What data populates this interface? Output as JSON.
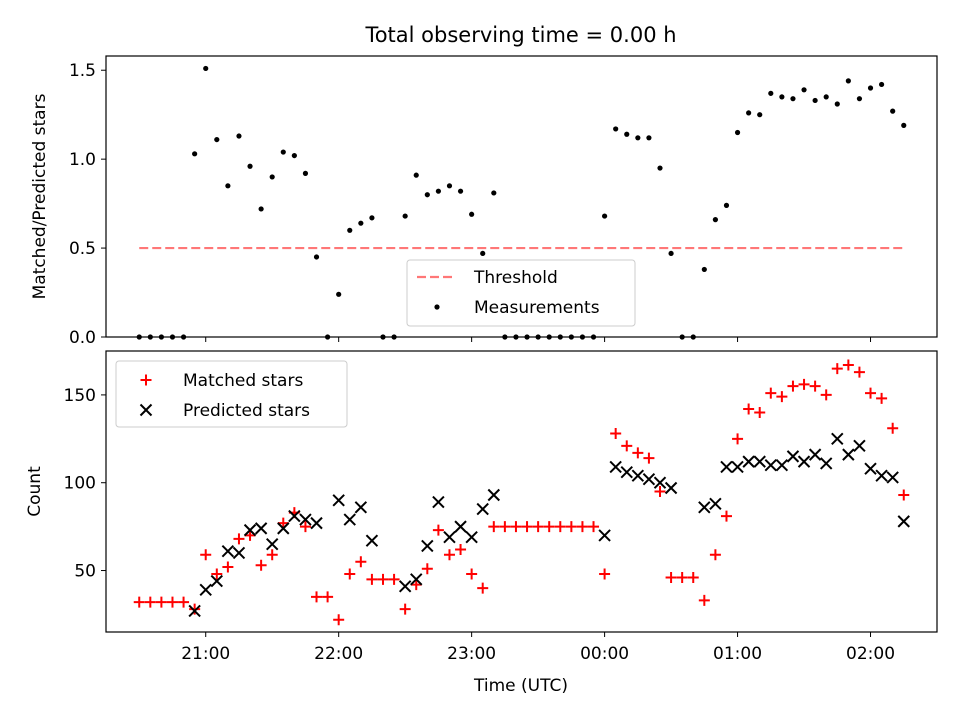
{
  "title": "Total observing time = 0.00 h",
  "xlabel": "Time (UTC)",
  "x_tick_labels": [
    "21:00",
    "22:00",
    "23:00",
    "00:00",
    "01:00",
    "02:00"
  ],
  "colors": {
    "threshold": "#ff7777",
    "measurements": "#000000",
    "matched": "#ff0000",
    "predicted": "#000000"
  },
  "chart_data": [
    {
      "type": "scatter",
      "ylabel": "Matched/Predicted stars",
      "ylim": [
        0,
        1.58
      ],
      "y_ticks": [
        "0.0",
        "0.5",
        "1.0",
        "1.5"
      ],
      "y_tick_values": [
        0,
        0.5,
        1.0,
        1.5
      ],
      "legend_location": "bottom-center",
      "series": [
        {
          "name": "Threshold",
          "kind": "dashed-line",
          "x": [
            "20:30",
            "02:15"
          ],
          "y": [
            0.5,
            0.5
          ]
        },
        {
          "name": "Measurements",
          "kind": "dot",
          "x": [
            "20:30",
            "20:35",
            "20:40",
            "20:45",
            "20:50",
            "20:55",
            "21:00",
            "21:05",
            "21:10",
            "21:15",
            "21:20",
            "21:25",
            "21:30",
            "21:35",
            "21:40",
            "21:45",
            "21:50",
            "21:55",
            "22:00",
            "22:05",
            "22:10",
            "22:15",
            "22:20",
            "22:25",
            "22:30",
            "22:35",
            "22:40",
            "22:45",
            "22:50",
            "22:55",
            "23:00",
            "23:05",
            "23:10",
            "23:15",
            "23:20",
            "23:25",
            "23:30",
            "23:35",
            "23:40",
            "23:45",
            "23:50",
            "23:55",
            "00:00",
            "00:05",
            "00:10",
            "00:15",
            "00:20",
            "00:25",
            "00:30",
            "00:35",
            "00:40",
            "00:45",
            "00:50",
            "00:55",
            "01:00",
            "01:05",
            "01:10",
            "01:15",
            "01:20",
            "01:25",
            "01:30",
            "01:35",
            "01:40",
            "01:45",
            "01:50",
            "01:55",
            "02:00",
            "02:05",
            "02:10",
            "02:15"
          ],
          "y": [
            0,
            0,
            0,
            0,
            0,
            1.03,
            1.51,
            1.11,
            0.85,
            1.13,
            0.96,
            0.72,
            0.9,
            1.04,
            1.02,
            0.92,
            0.45,
            0,
            0.24,
            0.6,
            0.64,
            0.67,
            0,
            0,
            0.68,
            0.91,
            0.8,
            0.82,
            0.85,
            0.82,
            0.69,
            0.47,
            0.81,
            0,
            0,
            0,
            0,
            0,
            0,
            0,
            0,
            0,
            0.68,
            1.17,
            1.14,
            1.12,
            1.12,
            0.95,
            0.47,
            0,
            0,
            0.38,
            0.66,
            0.74,
            1.15,
            1.26,
            1.25,
            1.37,
            1.35,
            1.34,
            1.39,
            1.33,
            1.35,
            1.31,
            1.44,
            1.34,
            1.4,
            1.42,
            1.27,
            1.19
          ]
        }
      ]
    },
    {
      "type": "scatter",
      "ylabel": "Count",
      "ylim": [
        15,
        175
      ],
      "y_ticks": [
        "50",
        "100",
        "150"
      ],
      "y_tick_values": [
        50,
        100,
        150
      ],
      "legend_location": "top-left",
      "series": [
        {
          "name": "Matched stars",
          "marker": "plus",
          "x": [
            "20:30",
            "20:35",
            "20:40",
            "20:45",
            "20:50",
            "20:55",
            "21:00",
            "21:05",
            "21:10",
            "21:15",
            "21:20",
            "21:25",
            "21:30",
            "21:35",
            "21:40",
            "21:45",
            "21:50",
            "21:55",
            "22:00",
            "22:05",
            "22:10",
            "22:15",
            "22:20",
            "22:25",
            "22:30",
            "22:35",
            "22:40",
            "22:45",
            "22:50",
            "22:55",
            "23:00",
            "23:05",
            "23:10",
            "23:15",
            "23:20",
            "23:25",
            "23:30",
            "23:35",
            "23:40",
            "23:45",
            "23:50",
            "23:55",
            "00:00",
            "00:05",
            "00:10",
            "00:15",
            "00:20",
            "00:25",
            "00:30",
            "00:35",
            "00:40",
            "00:45",
            "00:50",
            "00:55",
            "01:00",
            "01:05",
            "01:10",
            "01:15",
            "01:20",
            "01:25",
            "01:30",
            "01:35",
            "01:40",
            "01:45",
            "01:50",
            "01:55",
            "02:00",
            "02:05",
            "02:10",
            "02:15"
          ],
          "y": [
            32,
            32,
            32,
            32,
            32,
            28,
            59,
            48,
            52,
            68,
            70,
            53,
            59,
            77,
            83,
            75,
            35,
            35,
            22,
            48,
            55,
            45,
            45,
            45,
            28,
            42,
            51,
            73,
            59,
            62,
            48,
            40,
            75,
            75,
            75,
            75,
            75,
            75,
            75,
            75,
            75,
            75,
            48,
            128,
            121,
            117,
            114,
            95,
            46,
            46,
            46,
            33,
            59,
            81,
            125,
            142,
            140,
            151,
            149,
            155,
            156,
            155,
            150,
            165,
            167,
            163,
            151,
            148,
            131,
            93
          ]
        },
        {
          "name": "Predicted stars",
          "marker": "cross",
          "x": [
            "20:55",
            "21:00",
            "21:05",
            "21:10",
            "21:15",
            "21:20",
            "21:25",
            "21:30",
            "21:35",
            "21:40",
            "21:45",
            "21:50",
            "22:00",
            "22:05",
            "22:10",
            "22:15",
            "22:30",
            "22:35",
            "22:40",
            "22:45",
            "22:50",
            "22:55",
            "23:00",
            "23:05",
            "23:10",
            "00:00",
            "00:05",
            "00:10",
            "00:15",
            "00:20",
            "00:25",
            "00:30",
            "00:45",
            "00:50",
            "00:55",
            "01:00",
            "01:05",
            "01:10",
            "01:15",
            "01:20",
            "01:25",
            "01:30",
            "01:35",
            "01:40",
            "01:45",
            "01:50",
            "01:55",
            "02:00",
            "02:05",
            "02:10",
            "02:15"
          ],
          "y": [
            27,
            39,
            44,
            61,
            60,
            73,
            74,
            65,
            74,
            81,
            79,
            77,
            90,
            79,
            86,
            67,
            41,
            45,
            64,
            89,
            69,
            75,
            69,
            85,
            93,
            70,
            109,
            106,
            104,
            102,
            100,
            97,
            86,
            88,
            109,
            109,
            112,
            112,
            110,
            110,
            115,
            112,
            116,
            111,
            125,
            116,
            121,
            108,
            104,
            103,
            78
          ]
        }
      ]
    }
  ]
}
